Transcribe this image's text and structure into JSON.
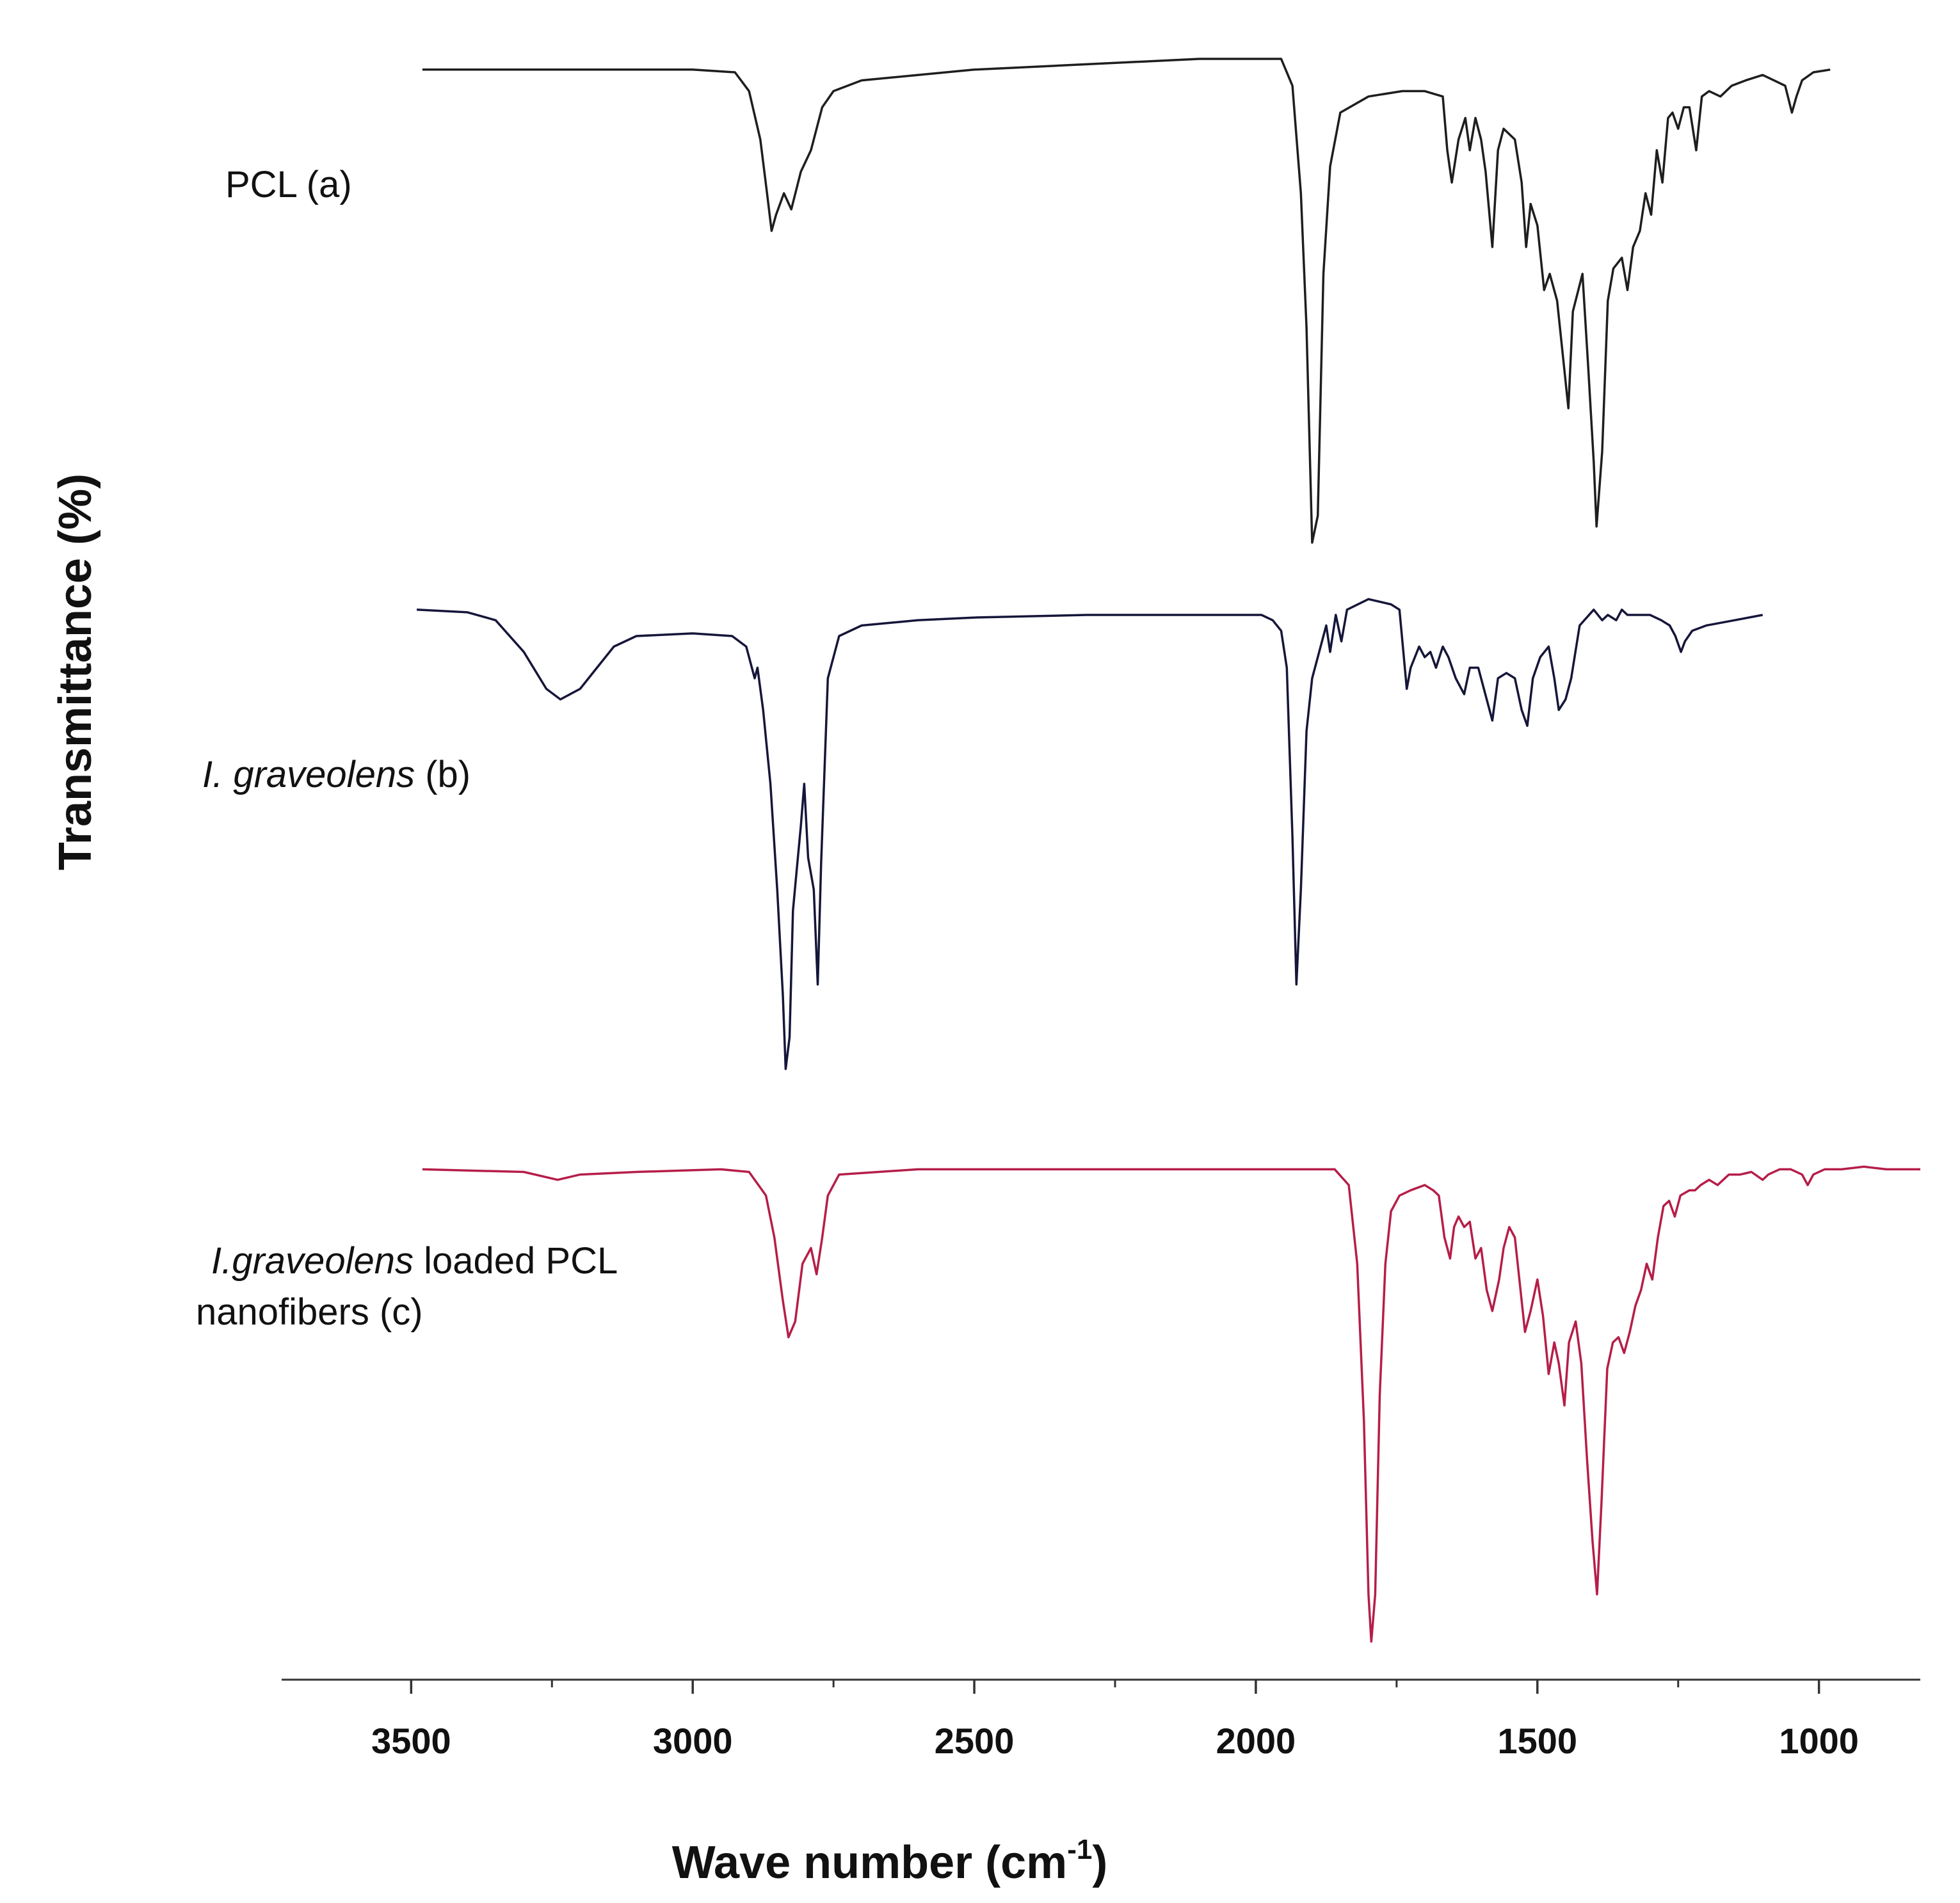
{
  "chart_data": {
    "type": "line",
    "title": "",
    "xlabel": "Wave number (cm",
    "xlabel_sup": "-1",
    "xlabel_close": ")",
    "ylabel": "Transmittance (%)",
    "x_reversed": true,
    "xlim": [
      3730,
      820
    ],
    "xticks": [
      3500,
      3000,
      2500,
      2000,
      1500,
      1000
    ],
    "xtick_labels": [
      "3500",
      "3000",
      "2500",
      "2000",
      "1500",
      "1000"
    ],
    "minor_tick_step": 250,
    "grid": false,
    "yticks_shown": false,
    "series": [
      {
        "name": "PCL (a)",
        "color": "#1e1e1e",
        "label_parts": [
          {
            "text": "PCL (a)",
            "italic": false
          }
        ],
        "baseline": 93,
        "points": [
          [
            3480,
            93
          ],
          [
            3250,
            93
          ],
          [
            3000,
            93
          ],
          [
            2925,
            92.5
          ],
          [
            2900,
            89
          ],
          [
            2880,
            80
          ],
          [
            2868,
            70
          ],
          [
            2860,
            63
          ],
          [
            2852,
            66
          ],
          [
            2838,
            70
          ],
          [
            2825,
            67
          ],
          [
            2808,
            74
          ],
          [
            2790,
            78
          ],
          [
            2770,
            86
          ],
          [
            2750,
            89
          ],
          [
            2700,
            91
          ],
          [
            2500,
            93
          ],
          [
            2300,
            94
          ],
          [
            2100,
            95
          ],
          [
            1955,
            95
          ],
          [
            1935,
            90
          ],
          [
            1920,
            70
          ],
          [
            1910,
            45
          ],
          [
            1900,
            5
          ],
          [
            1890,
            10
          ],
          [
            1880,
            55
          ],
          [
            1868,
            75
          ],
          [
            1850,
            85
          ],
          [
            1800,
            88
          ],
          [
            1740,
            89
          ],
          [
            1700,
            89
          ],
          [
            1668,
            88
          ],
          [
            1660,
            78
          ],
          [
            1652,
            72
          ],
          [
            1640,
            80
          ],
          [
            1628,
            84
          ],
          [
            1620,
            78
          ],
          [
            1610,
            84
          ],
          [
            1600,
            80
          ],
          [
            1592,
            74
          ],
          [
            1580,
            60
          ],
          [
            1570,
            78
          ],
          [
            1560,
            82
          ],
          [
            1540,
            80
          ],
          [
            1528,
            72
          ],
          [
            1520,
            60
          ],
          [
            1512,
            68
          ],
          [
            1500,
            64
          ],
          [
            1488,
            52
          ],
          [
            1478,
            55
          ],
          [
            1465,
            50
          ],
          [
            1455,
            40
          ],
          [
            1445,
            30
          ],
          [
            1437,
            48
          ],
          [
            1420,
            55
          ],
          [
            1410,
            38
          ],
          [
            1400,
            20
          ],
          [
            1395,
            8
          ],
          [
            1385,
            22
          ],
          [
            1375,
            50
          ],
          [
            1365,
            56
          ],
          [
            1350,
            58
          ],
          [
            1340,
            52
          ],
          [
            1330,
            60
          ],
          [
            1318,
            63
          ],
          [
            1308,
            70
          ],
          [
            1298,
            66
          ],
          [
            1288,
            78
          ],
          [
            1278,
            72
          ],
          [
            1268,
            84
          ],
          [
            1260,
            85
          ],
          [
            1250,
            82
          ],
          [
            1240,
            86
          ],
          [
            1230,
            86
          ],
          [
            1218,
            78
          ],
          [
            1208,
            88
          ],
          [
            1195,
            89
          ],
          [
            1175,
            88
          ],
          [
            1155,
            90
          ],
          [
            1130,
            91
          ],
          [
            1100,
            92
          ],
          [
            1080,
            91
          ],
          [
            1060,
            90
          ],
          [
            1048,
            85
          ],
          [
            1040,
            88
          ],
          [
            1030,
            91
          ],
          [
            1010,
            92.5
          ],
          [
            980,
            93
          ]
        ]
      },
      {
        "name": "I. graveolens (b)",
        "color": "#16163a",
        "label_parts": [
          {
            "text": "I. graveolens",
            "italic": true
          },
          {
            "text": " (b)",
            "italic": false
          }
        ],
        "baseline": 93,
        "points": [
          [
            3490,
            93
          ],
          [
            3400,
            92.5
          ],
          [
            3350,
            91
          ],
          [
            3300,
            85
          ],
          [
            3260,
            78
          ],
          [
            3235,
            76
          ],
          [
            3200,
            78
          ],
          [
            3170,
            82
          ],
          [
            3140,
            86
          ],
          [
            3100,
            88
          ],
          [
            3000,
            88.5
          ],
          [
            2930,
            88
          ],
          [
            2905,
            86
          ],
          [
            2890,
            80
          ],
          [
            2885,
            82
          ],
          [
            2875,
            74
          ],
          [
            2862,
            60
          ],
          [
            2850,
            40
          ],
          [
            2840,
            20
          ],
          [
            2835,
            6
          ],
          [
            2828,
            12
          ],
          [
            2822,
            36
          ],
          [
            2815,
            44
          ],
          [
            2808,
            52
          ],
          [
            2802,
            60
          ],
          [
            2795,
            46
          ],
          [
            2785,
            40
          ],
          [
            2778,
            22
          ],
          [
            2772,
            45
          ],
          [
            2760,
            80
          ],
          [
            2740,
            88
          ],
          [
            2700,
            90
          ],
          [
            2600,
            91
          ],
          [
            2500,
            91.5
          ],
          [
            2300,
            92
          ],
          [
            2100,
            92
          ],
          [
            1990,
            92
          ],
          [
            1970,
            91
          ],
          [
            1955,
            89
          ],
          [
            1945,
            82
          ],
          [
            1935,
            50
          ],
          [
            1928,
            22
          ],
          [
            1920,
            40
          ],
          [
            1910,
            70
          ],
          [
            1900,
            80
          ],
          [
            1885,
            86
          ],
          [
            1875,
            90
          ],
          [
            1868,
            85
          ],
          [
            1858,
            92
          ],
          [
            1848,
            87
          ],
          [
            1838,
            93
          ],
          [
            1800,
            95
          ],
          [
            1760,
            94
          ],
          [
            1745,
            93
          ],
          [
            1738,
            85
          ],
          [
            1732,
            78
          ],
          [
            1725,
            82
          ],
          [
            1710,
            86
          ],
          [
            1700,
            84
          ],
          [
            1690,
            85
          ],
          [
            1680,
            82
          ],
          [
            1668,
            86
          ],
          [
            1658,
            84
          ],
          [
            1645,
            80
          ],
          [
            1630,
            77
          ],
          [
            1620,
            82
          ],
          [
            1605,
            82
          ],
          [
            1590,
            76
          ],
          [
            1580,
            72
          ],
          [
            1570,
            80
          ],
          [
            1555,
            81
          ],
          [
            1540,
            80
          ],
          [
            1528,
            74
          ],
          [
            1518,
            71
          ],
          [
            1508,
            80
          ],
          [
            1495,
            84
          ],
          [
            1480,
            86
          ],
          [
            1470,
            80
          ],
          [
            1462,
            74
          ],
          [
            1450,
            76
          ],
          [
            1440,
            80
          ],
          [
            1425,
            90
          ],
          [
            1400,
            93
          ],
          [
            1385,
            91
          ],
          [
            1375,
            92
          ],
          [
            1360,
            91
          ],
          [
            1350,
            93
          ],
          [
            1340,
            92
          ],
          [
            1300,
            92
          ],
          [
            1280,
            91
          ],
          [
            1265,
            90
          ],
          [
            1255,
            88
          ],
          [
            1245,
            85
          ],
          [
            1238,
            87
          ],
          [
            1225,
            89
          ],
          [
            1200,
            90
          ],
          [
            1150,
            91
          ],
          [
            1100,
            92
          ]
        ]
      },
      {
        "name": "I.graveolens loaded PCL nanofibers (c)",
        "color": "#b51e48",
        "label_parts": [
          {
            "text": "I.graveolens",
            "italic": true
          },
          {
            "text": " loaded PCL",
            "italic": false
          }
        ],
        "label_line2": "nanofibers (c)",
        "baseline": 93,
        "points": [
          [
            3480,
            93
          ],
          [
            3300,
            92.5
          ],
          [
            3240,
            91
          ],
          [
            3200,
            92
          ],
          [
            3100,
            92.5
          ],
          [
            2950,
            93
          ],
          [
            2900,
            92.5
          ],
          [
            2870,
            88
          ],
          [
            2855,
            80
          ],
          [
            2840,
            68
          ],
          [
            2830,
            61
          ],
          [
            2818,
            64
          ],
          [
            2805,
            75
          ],
          [
            2790,
            78
          ],
          [
            2780,
            73
          ],
          [
            2770,
            80
          ],
          [
            2760,
            88
          ],
          [
            2740,
            92
          ],
          [
            2600,
            93
          ],
          [
            2400,
            93
          ],
          [
            2200,
            93
          ],
          [
            2050,
            93
          ],
          [
            1950,
            93
          ],
          [
            1900,
            93
          ],
          [
            1860,
            93
          ],
          [
            1835,
            90
          ],
          [
            1820,
            75
          ],
          [
            1808,
            45
          ],
          [
            1800,
            12
          ],
          [
            1795,
            3
          ],
          [
            1788,
            12
          ],
          [
            1780,
            50
          ],
          [
            1770,
            75
          ],
          [
            1760,
            85
          ],
          [
            1745,
            88
          ],
          [
            1725,
            89
          ],
          [
            1700,
            90
          ],
          [
            1685,
            89
          ],
          [
            1675,
            88
          ],
          [
            1665,
            80
          ],
          [
            1655,
            76
          ],
          [
            1648,
            82
          ],
          [
            1640,
            84
          ],
          [
            1630,
            82
          ],
          [
            1620,
            83
          ],
          [
            1610,
            76
          ],
          [
            1600,
            78
          ],
          [
            1590,
            70
          ],
          [
            1580,
            66
          ],
          [
            1568,
            72
          ],
          [
            1560,
            78
          ],
          [
            1550,
            82
          ],
          [
            1540,
            80
          ],
          [
            1530,
            70
          ],
          [
            1522,
            62
          ],
          [
            1512,
            66
          ],
          [
            1500,
            72
          ],
          [
            1490,
            65
          ],
          [
            1480,
            54
          ],
          [
            1470,
            60
          ],
          [
            1462,
            56
          ],
          [
            1452,
            48
          ],
          [
            1444,
            60
          ],
          [
            1432,
            64
          ],
          [
            1422,
            56
          ],
          [
            1412,
            38
          ],
          [
            1402,
            22
          ],
          [
            1394,
            12
          ],
          [
            1386,
            30
          ],
          [
            1376,
            55
          ],
          [
            1366,
            60
          ],
          [
            1356,
            61
          ],
          [
            1346,
            58
          ],
          [
            1336,
            62
          ],
          [
            1326,
            67
          ],
          [
            1316,
            70
          ],
          [
            1306,
            75
          ],
          [
            1296,
            72
          ],
          [
            1286,
            80
          ],
          [
            1276,
            86
          ],
          [
            1266,
            87
          ],
          [
            1256,
            84
          ],
          [
            1246,
            88
          ],
          [
            1230,
            89
          ],
          [
            1220,
            89
          ],
          [
            1210,
            90
          ],
          [
            1195,
            91
          ],
          [
            1180,
            90
          ],
          [
            1170,
            91
          ],
          [
            1160,
            92
          ],
          [
            1140,
            92
          ],
          [
            1120,
            92.5
          ],
          [
            1100,
            91
          ],
          [
            1090,
            92
          ],
          [
            1070,
            93
          ],
          [
            1050,
            93
          ],
          [
            1030,
            92
          ],
          [
            1020,
            90
          ],
          [
            1010,
            92
          ],
          [
            990,
            93
          ],
          [
            960,
            93
          ],
          [
            920,
            93.5
          ],
          [
            880,
            93
          ],
          [
            840,
            93
          ],
          [
            820,
            93
          ]
        ]
      }
    ]
  }
}
